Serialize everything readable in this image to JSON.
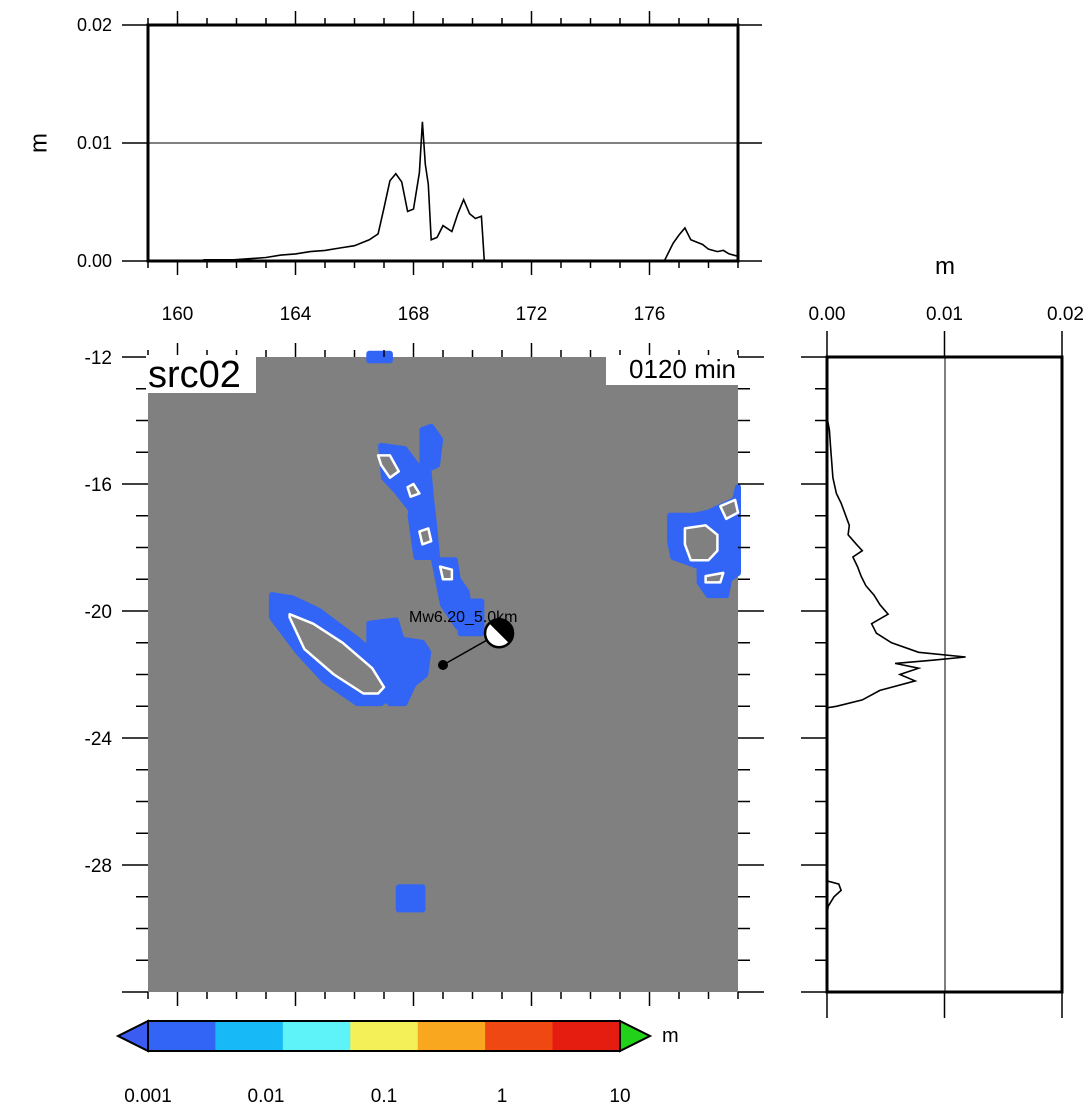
{
  "chart_data": [
    {
      "id": "top-profile",
      "type": "line",
      "xlabel": "",
      "ylabel": "m",
      "xlim": [
        159,
        179
      ],
      "ylim": [
        0,
        0.02
      ],
      "xticks": [
        "160",
        "164",
        "168",
        "172",
        "176"
      ],
      "yticks": [
        "0.00",
        "0.01",
        "0.02"
      ],
      "reference_line": 0.01,
      "series": [
        {
          "x": [
            159.0,
            160.8,
            160.9,
            161.9,
            162.5,
            163.0,
            163.5,
            164.0,
            164.5,
            165.0,
            165.5,
            166.0,
            166.5,
            166.8,
            167.0,
            167.2,
            167.4,
            167.6,
            167.8,
            168.0,
            168.2,
            168.3,
            168.4,
            168.5,
            168.6,
            168.8,
            169.0,
            169.3,
            169.5,
            169.7,
            169.9,
            170.1,
            170.3,
            170.35,
            170.4,
            176.5,
            176.8,
            177.0,
            177.2,
            177.4,
            177.6,
            177.8,
            178.0,
            178.3,
            178.5,
            178.7,
            179.0
          ],
          "y": [
            0.0,
            0.0,
            0.0001,
            0.0001,
            0.0002,
            0.0003,
            0.0005,
            0.0006,
            0.0008,
            0.0009,
            0.0011,
            0.0013,
            0.0018,
            0.0023,
            0.0045,
            0.0068,
            0.0074,
            0.0067,
            0.0042,
            0.0044,
            0.0075,
            0.0118,
            0.0082,
            0.0065,
            0.0018,
            0.002,
            0.003,
            0.0025,
            0.004,
            0.0052,
            0.004,
            0.0036,
            0.0038,
            0.002,
            0.0,
            0.0,
            0.0015,
            0.0022,
            0.0028,
            0.0018,
            0.0016,
            0.0014,
            0.001,
            0.0008,
            0.0009,
            0.0006,
            0.0004
          ]
        }
      ]
    },
    {
      "id": "right-profile",
      "type": "line",
      "xlabel": "m",
      "ylabel": "",
      "xlim": [
        0,
        0.02
      ],
      "ylim": [
        -32,
        -12
      ],
      "xticks": [
        "0.00",
        "0.01",
        "0.02"
      ],
      "reference_line": 0.01,
      "series": [
        {
          "lat": [
            -13.9,
            -14.3,
            -14.8,
            -15.3,
            -15.8,
            -16.3,
            -16.6,
            -17.0,
            -17.3,
            -17.6,
            -17.9,
            -18.1,
            -18.3,
            -18.6,
            -18.9,
            -19.2,
            -19.5,
            -19.8,
            -20.1,
            -20.4,
            -20.7,
            -21.0,
            -21.3,
            -21.45,
            -21.55,
            -21.65,
            -21.8,
            -22.0,
            -22.2,
            -22.5,
            -22.8,
            -23.0,
            -23.05,
            -23.2,
            -28.5,
            -28.6,
            -28.8,
            -29.0,
            -29.3,
            -29.6,
            -29.7
          ],
          "value": [
            0.0,
            0.0002,
            0.0003,
            0.0004,
            0.0005,
            0.0008,
            0.0012,
            0.0016,
            0.0019,
            0.0018,
            0.0025,
            0.003,
            0.0022,
            0.0026,
            0.0029,
            0.0033,
            0.004,
            0.0045,
            0.0052,
            0.0038,
            0.0042,
            0.0055,
            0.0078,
            0.0118,
            0.009,
            0.0058,
            0.0078,
            0.0062,
            0.0075,
            0.0045,
            0.003,
            0.0008,
            0.0,
            0.0,
            0.0,
            0.001,
            0.0012,
            0.0006,
            0.0001,
            0.0,
            0.0
          ]
        }
      ]
    },
    {
      "id": "map",
      "type": "heatmap",
      "xlim": [
        159,
        179
      ],
      "ylim": [
        -32,
        -12
      ],
      "xticks": [
        "160",
        "164",
        "168",
        "172",
        "176"
      ],
      "yticks": [
        "-12",
        "-16",
        "-20",
        "-24",
        "-28"
      ],
      "label": "src02",
      "time_label": "0120 min",
      "event_label": "Mw6.20_5.0km",
      "epicenter": {
        "lon": 169.0,
        "lat": -21.7
      },
      "mechanism": {
        "lon": 170.9,
        "lat": -20.7
      },
      "regions": [
        {
          "name": "vanuatu-north-1",
          "lon": [
            168.3,
            168.6,
            168.9,
            168.8,
            168.3
          ],
          "lat": [
            -14.3,
            -14.2,
            -14.6,
            -15.4,
            -15.6
          ],
          "level": 0.001
        },
        {
          "name": "vanuatu-north-2",
          "lon": [
            166.9,
            167.7,
            168.1,
            168.3,
            168.4,
            168.0,
            167.4,
            167.0
          ],
          "lat": [
            -14.8,
            -14.9,
            -15.4,
            -15.6,
            -16.6,
            -16.9,
            -16.2,
            -15.8
          ],
          "level": 0.001
        },
        {
          "name": "vanuatu-north-3",
          "lon": [
            167.8,
            168.5,
            168.6,
            168.3,
            167.9
          ],
          "lat": [
            -15.5,
            -15.5,
            -16.5,
            -16.6,
            -16.3
          ],
          "level": 0.001
        },
        {
          "name": "vanuatu-central",
          "lon": [
            168.0,
            168.6,
            168.7,
            168.8,
            168.1,
            167.9
          ],
          "lat": [
            -16.4,
            -16.5,
            -17.3,
            -18.3,
            -18.3,
            -17.0
          ],
          "level": 0.001
        },
        {
          "name": "vanuatu-south",
          "lon": [
            168.7,
            169.4,
            169.5,
            169.8,
            169.9,
            169.7,
            169.5,
            169.0
          ],
          "lat": [
            -18.4,
            -18.4,
            -19.0,
            -19.4,
            -20.0,
            -20.4,
            -20.5,
            -19.8
          ],
          "level": 0.001
        },
        {
          "name": "new-caledonia",
          "lon": [
            163.2,
            163.9,
            164.8,
            166.1,
            167.1,
            167.3,
            166.9,
            166.1,
            165.0,
            164.1,
            163.2
          ],
          "lat": [
            -19.5,
            -19.6,
            -20.0,
            -20.9,
            -21.7,
            -22.6,
            -22.9,
            -22.9,
            -22.2,
            -21.3,
            -20.2
          ],
          "level": 0.001
        },
        {
          "name": "loyalty-islands",
          "lon": [
            166.5,
            167.4,
            167.6,
            168.3,
            168.5,
            168.4,
            168.0,
            167.7,
            167.2,
            166.6,
            166.5
          ],
          "lat": [
            -20.4,
            -20.3,
            -20.9,
            -21.0,
            -21.3,
            -22.0,
            -22.3,
            -22.9,
            -22.9,
            -22.2,
            -21.4
          ],
          "level": 0.001
        },
        {
          "name": "fiji-east",
          "lon": [
            176.7,
            177.5,
            178.0,
            178.9,
            179.0,
            179.0,
            178.7,
            178.6,
            178.0,
            177.7,
            177.7,
            176.8,
            176.7
          ],
          "lat": [
            -17.0,
            -17.0,
            -16.9,
            -16.5,
            -16.1,
            -18.8,
            -19.0,
            -19.5,
            -19.5,
            -19.1,
            -18.6,
            -18.3,
            -17.8
          ],
          "level": 0.001
        },
        {
          "name": "north-cell",
          "lon": [
            166.5,
            167.2,
            167.2,
            166.5
          ],
          "lat": [
            -11.9,
            -11.9,
            -12.1,
            -12.1
          ],
          "level": 0.001
        },
        {
          "name": "norfolk-cell",
          "lon": [
            167.5,
            168.3,
            168.3,
            167.5
          ],
          "lat": [
            -28.7,
            -28.7,
            -29.4,
            -29.4
          ],
          "level": 0.001
        },
        {
          "name": "vanuatu-tip",
          "lon": [
            169.6,
            170.3,
            170.3,
            169.6
          ],
          "lat": [
            -19.7,
            -19.7,
            -20.7,
            -20.7
          ],
          "level": 0.001
        }
      ],
      "contours": [
        {
          "name": "coast-nc",
          "lon": [
            163.8,
            164.6,
            165.6,
            166.6,
            167.0,
            166.8,
            166.3,
            165.3,
            164.3,
            163.8
          ],
          "lat": [
            -20.1,
            -20.4,
            -21.0,
            -21.8,
            -22.4,
            -22.6,
            -22.6,
            -22.0,
            -21.2,
            -20.2
          ]
        },
        {
          "name": "coast-vanuatu-1",
          "lon": [
            166.8,
            167.2,
            167.5,
            167.2,
            166.9
          ],
          "lat": [
            -15.1,
            -15.1,
            -15.6,
            -15.8,
            -15.4
          ]
        },
        {
          "name": "coast-vanuatu-2",
          "lon": [
            167.8,
            168.0,
            168.2,
            167.9
          ],
          "lat": [
            -16.1,
            -16.0,
            -16.3,
            -16.4
          ]
        },
        {
          "name": "coast-vanuatu-3",
          "lon": [
            168.2,
            168.5,
            168.6,
            168.3
          ],
          "lat": [
            -17.5,
            -17.4,
            -17.8,
            -17.9
          ]
        },
        {
          "name": "coast-vanuatu-4",
          "lon": [
            168.9,
            169.3,
            169.3,
            169.0
          ],
          "lat": [
            -18.6,
            -18.7,
            -19.0,
            -19.0
          ]
        },
        {
          "name": "coast-fiji",
          "lon": [
            177.2,
            177.9,
            178.3,
            178.3,
            178.0,
            177.4,
            177.2
          ],
          "lat": [
            -17.4,
            -17.3,
            -17.6,
            -18.1,
            -18.4,
            -18.4,
            -17.9
          ]
        },
        {
          "name": "coast-fiji-2",
          "lon": [
            178.4,
            178.9,
            179.0,
            178.6
          ],
          "lat": [
            -16.7,
            -16.5,
            -16.9,
            -17.1
          ]
        },
        {
          "name": "coast-fiji-3",
          "lon": [
            177.9,
            178.5,
            178.4,
            177.9
          ],
          "lat": [
            -18.9,
            -18.8,
            -19.1,
            -19.1
          ]
        }
      ]
    }
  ],
  "colorbar": {
    "unit": "m",
    "ticks": [
      "0.001",
      "0.01",
      "0.1",
      "1",
      "10"
    ],
    "colors": [
      "#3265f5",
      "#17b9f7",
      "#5ef3f8",
      "#f4f058",
      "#f8a71e",
      "#f04812",
      "#e51d11"
    ],
    "over_color": "#22d11a",
    "under_color": "#3a5cf0"
  },
  "colors": {
    "land": "#808080",
    "frame": "#000000",
    "contour": "#ffffff"
  }
}
